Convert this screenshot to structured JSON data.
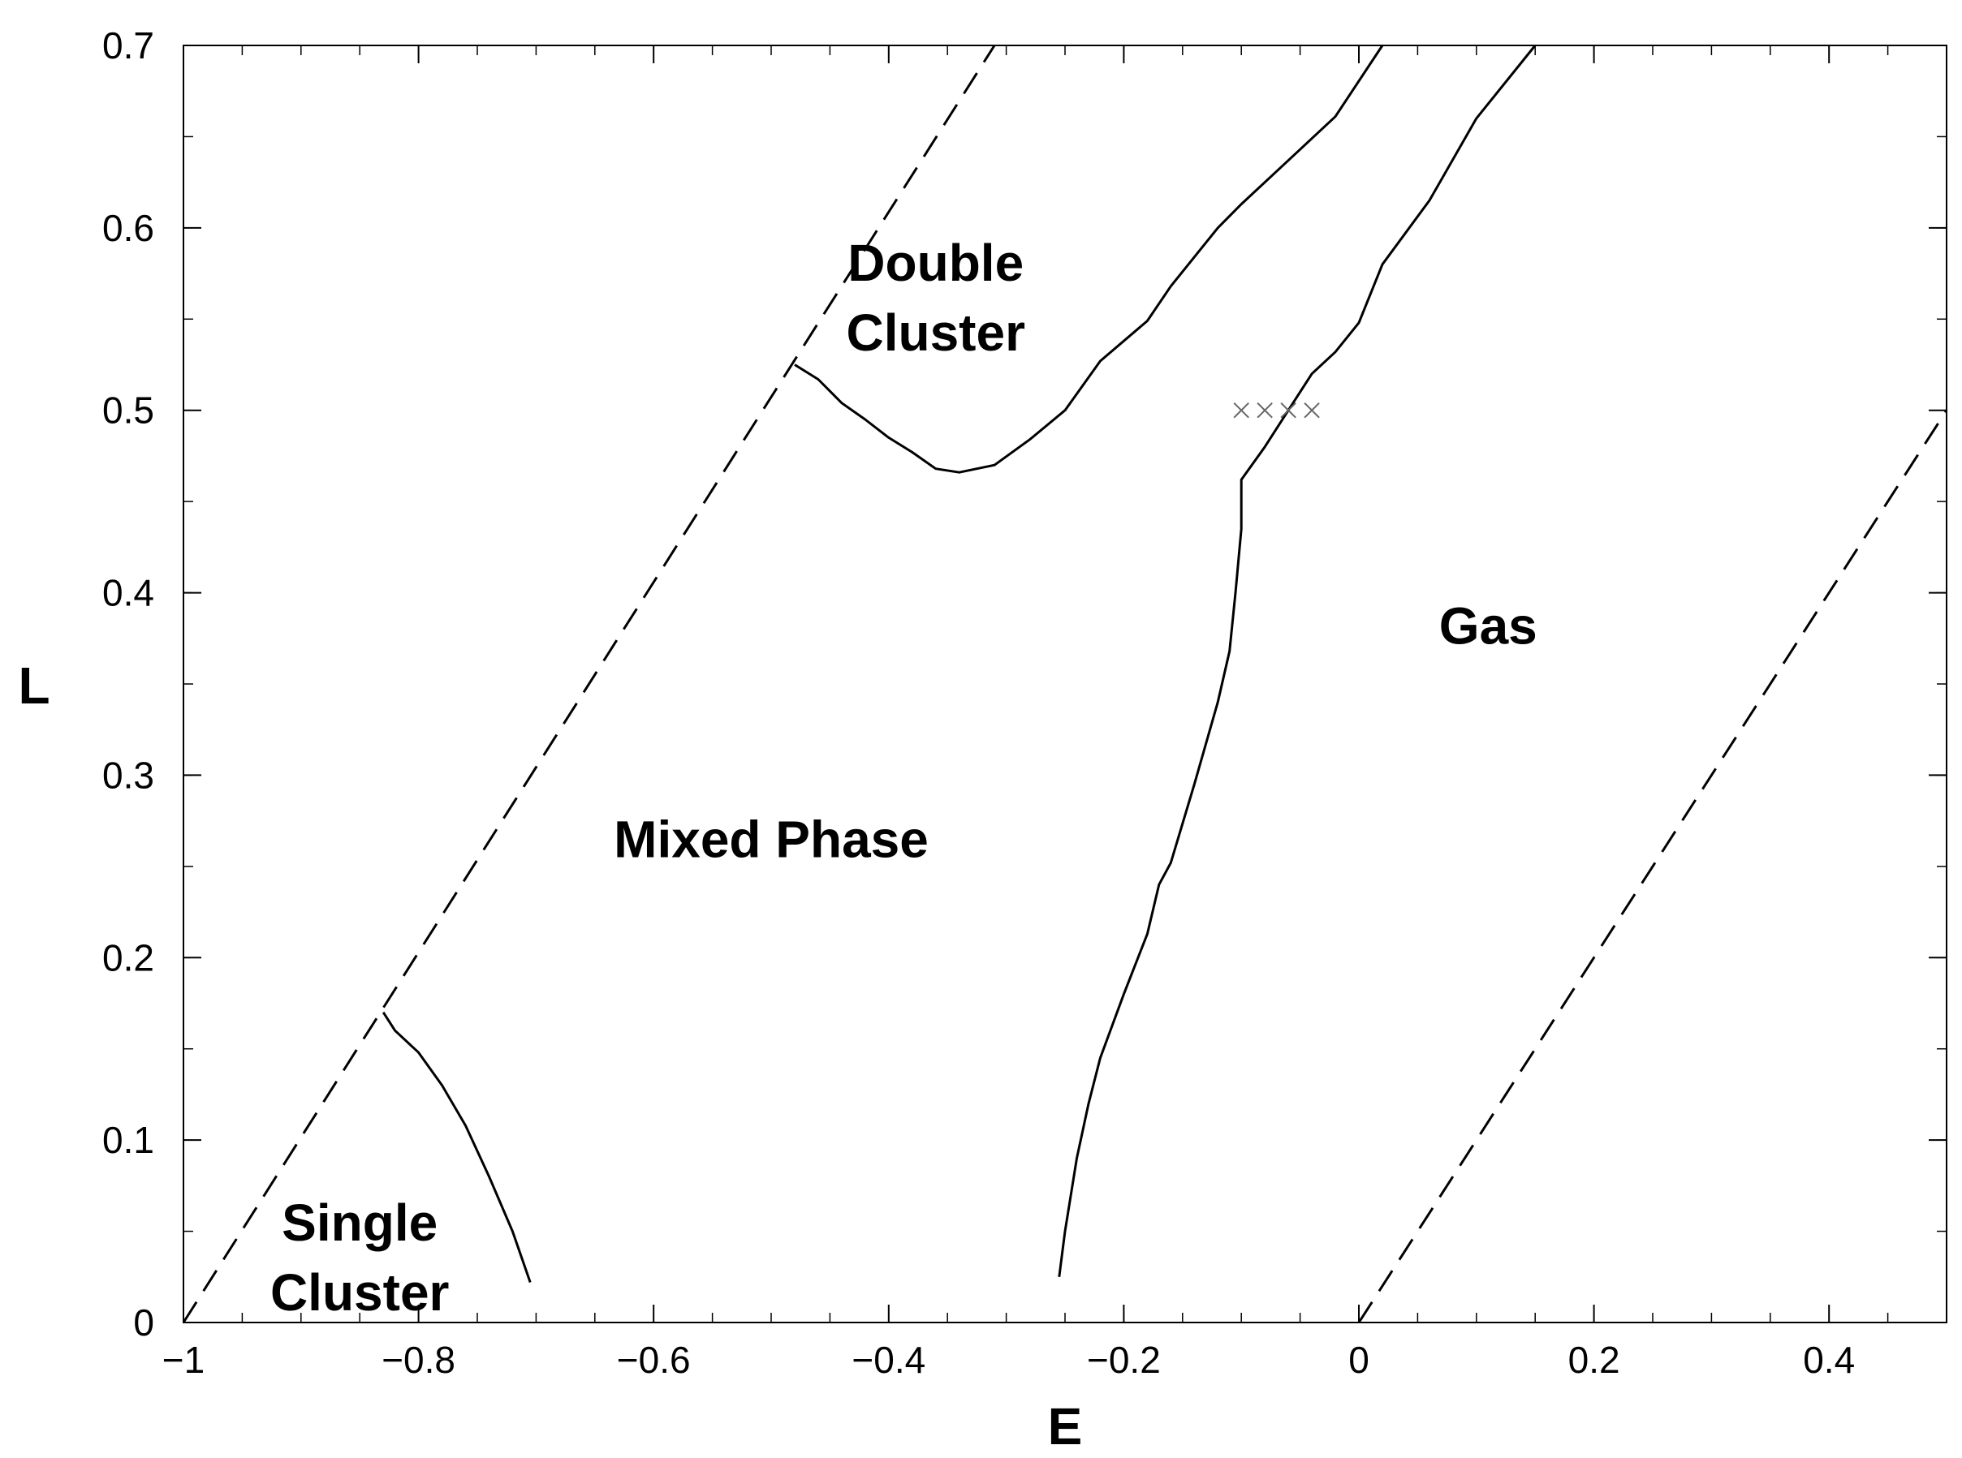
{
  "chart_data": {
    "type": "line",
    "xlabel": "E",
    "ylabel": "L",
    "xlim": [
      -1,
      0.5
    ],
    "ylim": [
      0,
      0.7
    ],
    "x_ticks": [
      -1,
      -0.8,
      -0.6,
      -0.4,
      -0.2,
      0,
      0.2,
      0.4
    ],
    "x_tick_labels": [
      "−1",
      "−0.8",
      "−0.6",
      "−0.4",
      "−0.2",
      "0",
      "0.2",
      "0.4"
    ],
    "y_ticks": [
      0,
      0.1,
      0.2,
      0.3,
      0.4,
      0.5,
      0.6,
      0.7
    ],
    "y_tick_labels": [
      "0",
      "0.1",
      "0.2",
      "0.3",
      "0.4",
      "0.5",
      "0.6",
      "0.7"
    ],
    "minor_x_step": 0.05,
    "minor_y_step": 0.05,
    "grid": false,
    "series": [
      {
        "style": "dashed",
        "points": [
          [
            -1,
            0
          ],
          [
            -0.31,
            0.7
          ]
        ]
      },
      {
        "style": "dashed",
        "points": [
          [
            0,
            0
          ],
          [
            0.5,
            0.5
          ]
        ]
      },
      {
        "style": "solid",
        "points": [
          [
            -0.83,
            0.17
          ],
          [
            -0.82,
            0.16
          ],
          [
            -0.8,
            0.148
          ],
          [
            -0.78,
            0.13
          ],
          [
            -0.76,
            0.108
          ],
          [
            -0.74,
            0.08
          ],
          [
            -0.72,
            0.05
          ],
          [
            -0.705,
            0.022
          ]
        ]
      },
      {
        "style": "solid",
        "points": [
          [
            -0.48,
            0.525
          ],
          [
            -0.46,
            0.517
          ],
          [
            -0.44,
            0.504
          ],
          [
            -0.42,
            0.495
          ],
          [
            -0.4,
            0.485
          ],
          [
            -0.38,
            0.477
          ],
          [
            -0.36,
            0.468
          ],
          [
            -0.34,
            0.466
          ],
          [
            -0.31,
            0.47
          ],
          [
            -0.28,
            0.484
          ],
          [
            -0.25,
            0.5
          ],
          [
            -0.22,
            0.527
          ],
          [
            -0.18,
            0.549
          ],
          [
            -0.16,
            0.568
          ],
          [
            -0.12,
            0.6
          ],
          [
            -0.1,
            0.613
          ],
          [
            -0.06,
            0.637
          ],
          [
            -0.02,
            0.661
          ],
          [
            0.02,
            0.7
          ]
        ]
      },
      {
        "style": "solid",
        "points": [
          [
            -0.255,
            0.025
          ],
          [
            -0.25,
            0.05
          ],
          [
            -0.24,
            0.09
          ],
          [
            -0.23,
            0.12
          ],
          [
            -0.22,
            0.145
          ],
          [
            -0.2,
            0.18
          ],
          [
            -0.18,
            0.213
          ],
          [
            -0.17,
            0.24
          ],
          [
            -0.16,
            0.252
          ],
          [
            -0.14,
            0.295
          ],
          [
            -0.12,
            0.34
          ],
          [
            -0.11,
            0.368
          ],
          [
            -0.105,
            0.4
          ],
          [
            -0.1,
            0.435
          ],
          [
            -0.1,
            0.462
          ],
          [
            -0.08,
            0.48
          ],
          [
            -0.06,
            0.5
          ],
          [
            -0.04,
            0.52
          ],
          [
            -0.02,
            0.532
          ],
          [
            0,
            0.548
          ],
          [
            0.02,
            0.58
          ],
          [
            0.06,
            0.615
          ],
          [
            0.1,
            0.66
          ],
          [
            0.15,
            0.7
          ]
        ]
      },
      {
        "style": "markers",
        "marker": "x",
        "points": [
          [
            -0.1,
            0.5
          ],
          [
            -0.08,
            0.5
          ],
          [
            -0.06,
            0.5
          ],
          [
            -0.04,
            0.5
          ]
        ]
      }
    ],
    "annotations": [
      {
        "lines": [
          "Double",
          "Cluster"
        ],
        "x": -0.36,
        "y": 0.571
      },
      {
        "lines": [
          "Mixed Phase"
        ],
        "x": -0.5,
        "y": 0.255
      },
      {
        "lines": [
          "Gas"
        ],
        "x": 0.11,
        "y": 0.372
      },
      {
        "lines": [
          "Single",
          "Cluster"
        ],
        "x": -0.85,
        "y": 0.045
      }
    ]
  }
}
